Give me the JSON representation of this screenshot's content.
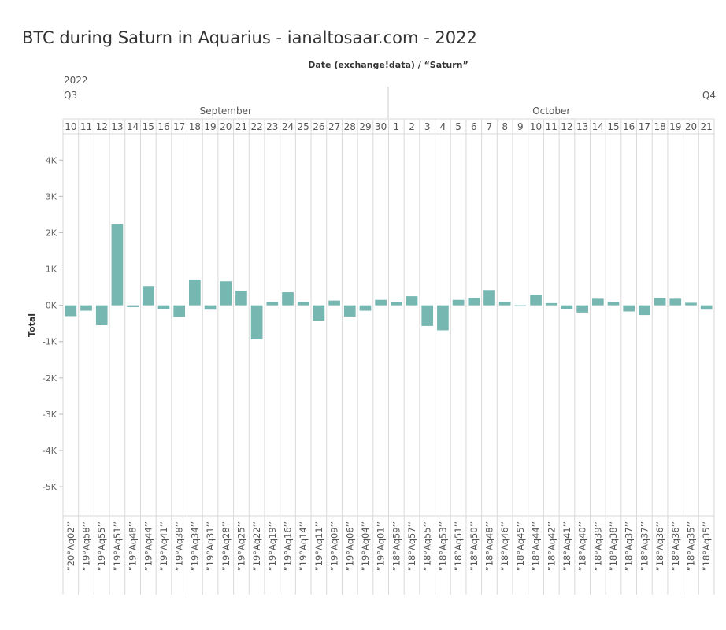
{
  "chart_data": {
    "type": "bar",
    "title": "BTC during Saturn in Aquarius - ianaltosaar.com - 2022",
    "header_title": "Date (exchange!data) / “Saturn”",
    "ylabel": "Total",
    "ylim": [
      -5800,
      4700
    ],
    "yticks": [
      4000,
      3000,
      2000,
      1000,
      0,
      -1000,
      -2000,
      -3000,
      -4000,
      -5000
    ],
    "ytick_labels": [
      "4K",
      "3K",
      "2K",
      "1K",
      "0K",
      "-1K",
      "-2K",
      "-3K",
      "-4K",
      "-5K"
    ],
    "grid": false,
    "bar_color": "#76b7b2",
    "year": "2022",
    "quarters": [
      {
        "label": "Q3",
        "start": 0
      },
      {
        "label": "Q4",
        "start": 21
      }
    ],
    "months": [
      {
        "label": "September",
        "start": 0,
        "end": 20
      },
      {
        "label": "October",
        "start": 21,
        "end": 41
      }
    ],
    "days": [
      "10",
      "11",
      "12",
      "13",
      "14",
      "15",
      "16",
      "17",
      "18",
      "19",
      "20",
      "21",
      "22",
      "23",
      "24",
      "25",
      "26",
      "27",
      "28",
      "29",
      "30",
      "1",
      "2",
      "3",
      "4",
      "5",
      "6",
      "7",
      "8",
      "9",
      "10",
      "11",
      "12",
      "13",
      "14",
      "15",
      "16",
      "17",
      "18",
      "19",
      "20",
      "21"
    ],
    "categories": [
      "”20°Aq02’’",
      "”19°Aq58’’",
      "”19°Aq55’’",
      "”19°Aq51’’",
      "”19°Aq48’’",
      "”19°Aq44’’",
      "”19°Aq41’’",
      "”19°Aq38’’",
      "”19°Aq34’’",
      "”19°Aq31’’",
      "”19°Aq28’’",
      "”19°Aq25’’",
      "”19°Aq22’’",
      "”19°Aq19’’",
      "”19°Aq16’’",
      "”19°Aq14’’",
      "”19°Aq11’’",
      "”19°Aq09’’",
      "”19°Aq06’’",
      "”19°Aq04’’",
      "”19°Aq01’’",
      "”18°Aq59’’",
      "”18°Aq57’’",
      "”18°Aq55’’",
      "”18°Aq53’’",
      "”18°Aq51’’",
      "”18°Aq50’’",
      "”18°Aq48’’",
      "”18°Aq46’’",
      "”18°Aq45’’",
      "”18°Aq44’’",
      "”18°Aq42’’",
      "”18°Aq41’’",
      "”18°Aq40’’",
      "”18°Aq39’’",
      "”18°Aq38’’",
      "”18°Aq37’’",
      "”18°Aq37’’",
      "”18°Aq36’’",
      "”18°Aq36’’",
      "”18°Aq35’’",
      "”18°Aq35’’"
    ],
    "values": [
      -300,
      -150,
      -550,
      2230,
      -50,
      530,
      -100,
      -320,
      710,
      -120,
      660,
      400,
      -940,
      90,
      360,
      90,
      -420,
      130,
      -310,
      -150,
      150,
      100,
      250,
      -570,
      -690,
      150,
      200,
      420,
      90,
      -20,
      290,
      60,
      -100,
      -200,
      180,
      100,
      -170,
      -270,
      200,
      180,
      70,
      -120
    ]
  }
}
